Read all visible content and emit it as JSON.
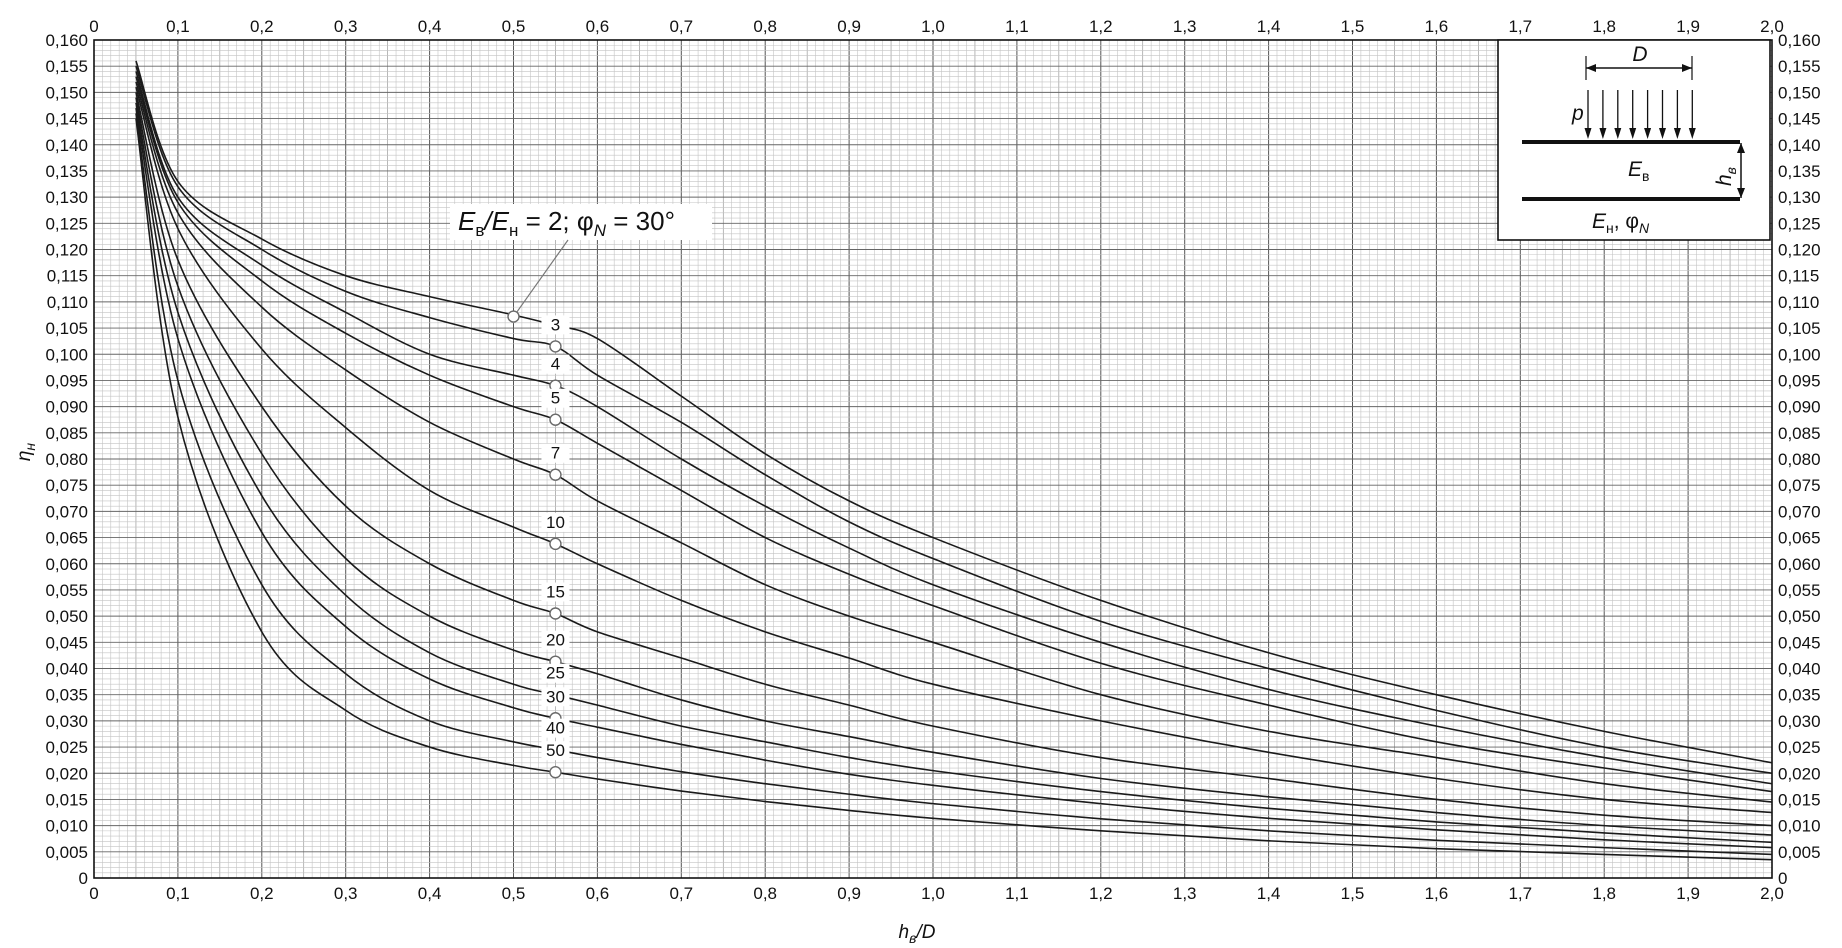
{
  "chart_data": {
    "type": "line",
    "xlabel": {
      "main": "h",
      "sub": "в",
      "rest": "/D"
    },
    "ylabel": {
      "main": "η",
      "sub": "н"
    },
    "xlim": [
      0,
      2.0
    ],
    "ylim": [
      0,
      0.16
    ],
    "x_ticks": [
      "0",
      "0,1",
      "0,2",
      "0,3",
      "0,4",
      "0,5",
      "0,6",
      "0,7",
      "0,8",
      "0,9",
      "1,0",
      "1,1",
      "1,2",
      "1,3",
      "1,4",
      "1,5",
      "1,6",
      "1,7",
      "1,8",
      "1,9",
      "2,0"
    ],
    "y_ticks": [
      "0",
      "0,005",
      "0,010",
      "0,015",
      "0,020",
      "0,025",
      "0,030",
      "0,035",
      "0,040",
      "0,045",
      "0,050",
      "0,055",
      "0,060",
      "0,065",
      "0,070",
      "0,075",
      "0,080",
      "0,085",
      "0,090",
      "0,095",
      "0,100",
      "0,105",
      "0,110",
      "0,115",
      "0,120",
      "0,125",
      "0,130",
      "0,135",
      "0,140",
      "0,145",
      "0,150",
      "0,155",
      "0,160"
    ],
    "grid": true,
    "annotation": {
      "E1": "E",
      "s1": "в",
      "E2": "/E",
      "s2": "н",
      "rest1": " = 2; φ",
      "s3": "N",
      "rest2": " = 30°",
      "x": 0.5,
      "y": 0.1072
    },
    "series": [
      {
        "name": "2",
        "label": "",
        "marker": [
          0.5,
          0.1072
        ],
        "x": [
          0.05,
          0.1,
          0.2,
          0.3,
          0.4,
          0.5,
          0.55,
          0.6,
          0.7,
          0.8,
          0.9,
          1.0,
          1.2,
          1.4,
          1.6,
          1.8,
          2.0
        ],
        "y": [
          0.156,
          0.133,
          0.122,
          0.115,
          0.111,
          0.1075,
          0.1055,
          0.103,
          0.092,
          0.081,
          0.072,
          0.065,
          0.053,
          0.043,
          0.035,
          0.028,
          0.022
        ]
      },
      {
        "name": "3",
        "label": "3",
        "marker": [
          0.55,
          0.1015
        ],
        "x": [
          0.05,
          0.1,
          0.2,
          0.3,
          0.4,
          0.5,
          0.55,
          0.6,
          0.7,
          0.8,
          0.9,
          1.0,
          1.2,
          1.4,
          1.6,
          1.8,
          2.0
        ],
        "y": [
          0.155,
          0.132,
          0.12,
          0.112,
          0.107,
          0.103,
          0.1015,
          0.096,
          0.087,
          0.077,
          0.068,
          0.061,
          0.049,
          0.04,
          0.032,
          0.025,
          0.02
        ]
      },
      {
        "name": "4",
        "label": "4",
        "marker": [
          0.55,
          0.094
        ],
        "x": [
          0.05,
          0.1,
          0.2,
          0.3,
          0.4,
          0.5,
          0.55,
          0.6,
          0.7,
          0.8,
          0.9,
          1.0,
          1.2,
          1.4,
          1.6,
          1.8,
          2.0
        ],
        "y": [
          0.154,
          0.13,
          0.117,
          0.108,
          0.1,
          0.096,
          0.094,
          0.09,
          0.08,
          0.071,
          0.063,
          0.056,
          0.045,
          0.036,
          0.029,
          0.023,
          0.018
        ]
      },
      {
        "name": "5",
        "label": "5",
        "marker": [
          0.55,
          0.0875
        ],
        "x": [
          0.05,
          0.1,
          0.2,
          0.3,
          0.4,
          0.5,
          0.55,
          0.6,
          0.7,
          0.8,
          0.9,
          1.0,
          1.2,
          1.4,
          1.6,
          1.8,
          2.0
        ],
        "y": [
          0.153,
          0.129,
          0.114,
          0.104,
          0.096,
          0.09,
          0.0875,
          0.083,
          0.074,
          0.065,
          0.058,
          0.052,
          0.041,
          0.033,
          0.026,
          0.021,
          0.0165
        ]
      },
      {
        "name": "7",
        "label": "7",
        "marker": [
          0.55,
          0.077
        ],
        "x": [
          0.05,
          0.1,
          0.2,
          0.3,
          0.4,
          0.5,
          0.55,
          0.6,
          0.7,
          0.8,
          0.9,
          1.0,
          1.2,
          1.4,
          1.6,
          1.8,
          2.0
        ],
        "y": [
          0.152,
          0.127,
          0.109,
          0.097,
          0.087,
          0.08,
          0.077,
          0.072,
          0.064,
          0.056,
          0.05,
          0.045,
          0.035,
          0.028,
          0.023,
          0.018,
          0.0145
        ]
      },
      {
        "name": "10",
        "label": "10",
        "marker": [
          0.55,
          0.0638
        ],
        "x": [
          0.05,
          0.1,
          0.2,
          0.3,
          0.4,
          0.5,
          0.55,
          0.6,
          0.7,
          0.8,
          0.9,
          1.0,
          1.2,
          1.4,
          1.6,
          1.8,
          2.0
        ],
        "y": [
          0.151,
          0.124,
          0.101,
          0.086,
          0.074,
          0.067,
          0.0638,
          0.06,
          0.053,
          0.047,
          0.042,
          0.037,
          0.03,
          0.024,
          0.019,
          0.015,
          0.0125
        ]
      },
      {
        "name": "15",
        "label": "15",
        "marker": [
          0.55,
          0.0505
        ],
        "x": [
          0.05,
          0.1,
          0.2,
          0.3,
          0.4,
          0.5,
          0.55,
          0.6,
          0.7,
          0.8,
          0.9,
          1.0,
          1.2,
          1.4,
          1.6,
          1.8,
          2.0
        ],
        "y": [
          0.15,
          0.118,
          0.09,
          0.071,
          0.06,
          0.053,
          0.0505,
          0.047,
          0.042,
          0.037,
          0.033,
          0.029,
          0.023,
          0.019,
          0.015,
          0.012,
          0.01
        ]
      },
      {
        "name": "20",
        "label": "20",
        "marker": [
          0.55,
          0.0413
        ],
        "x": [
          0.05,
          0.1,
          0.2,
          0.3,
          0.4,
          0.5,
          0.55,
          0.6,
          0.7,
          0.8,
          0.9,
          1.0,
          1.2,
          1.4,
          1.6,
          1.8,
          2.0
        ],
        "y": [
          0.149,
          0.113,
          0.081,
          0.061,
          0.05,
          0.0435,
          0.0413,
          0.039,
          0.034,
          0.03,
          0.027,
          0.024,
          0.019,
          0.0155,
          0.0125,
          0.01,
          0.0082
        ]
      },
      {
        "name": "25",
        "label": "25",
        "marker": [
          0.55,
          0.035
        ],
        "x": [
          0.05,
          0.1,
          0.2,
          0.3,
          0.4,
          0.5,
          0.55,
          0.6,
          0.7,
          0.8,
          0.9,
          1.0,
          1.2,
          1.4,
          1.6,
          1.8,
          2.0
        ],
        "y": [
          0.148,
          0.108,
          0.073,
          0.054,
          0.043,
          0.037,
          0.035,
          0.033,
          0.029,
          0.026,
          0.023,
          0.0205,
          0.0165,
          0.0133,
          0.0107,
          0.0086,
          0.0068
        ]
      },
      {
        "name": "30",
        "label": "30",
        "marker": [
          0.55,
          0.0305
        ],
        "x": [
          0.05,
          0.1,
          0.2,
          0.3,
          0.4,
          0.5,
          0.55,
          0.6,
          0.7,
          0.8,
          0.9,
          1.0,
          1.2,
          1.4,
          1.6,
          1.8,
          2.0
        ],
        "y": [
          0.147,
          0.103,
          0.066,
          0.048,
          0.038,
          0.0325,
          0.0305,
          0.0288,
          0.0255,
          0.0225,
          0.0198,
          0.0177,
          0.0142,
          0.0114,
          0.0092,
          0.0073,
          0.0058
        ]
      },
      {
        "name": "40",
        "label": "40",
        "marker": [
          0.55,
          0.0245
        ],
        "x": [
          0.05,
          0.1,
          0.2,
          0.3,
          0.4,
          0.5,
          0.55,
          0.6,
          0.7,
          0.8,
          0.9,
          1.0,
          1.2,
          1.4,
          1.6,
          1.8,
          2.0
        ],
        "y": [
          0.146,
          0.095,
          0.056,
          0.039,
          0.03,
          0.026,
          0.0245,
          0.023,
          0.0203,
          0.018,
          0.016,
          0.0142,
          0.0113,
          0.009,
          0.0072,
          0.0058,
          0.0045
        ]
      },
      {
        "name": "50",
        "label": "50",
        "marker": [
          0.55,
          0.0202
        ],
        "x": [
          0.05,
          0.1,
          0.2,
          0.3,
          0.4,
          0.5,
          0.55,
          0.6,
          0.7,
          0.8,
          0.9,
          1.0,
          1.2,
          1.4,
          1.6,
          1.8,
          2.0
        ],
        "y": [
          0.145,
          0.088,
          0.047,
          0.032,
          0.025,
          0.0215,
          0.0202,
          0.0189,
          0.0166,
          0.0146,
          0.0129,
          0.0114,
          0.009,
          0.0071,
          0.0056,
          0.0045,
          0.0035
        ]
      }
    ]
  },
  "inset": {
    "D": "D",
    "p": "p",
    "Ev_main": "E",
    "Ev_sub": "в",
    "hv_main": "h",
    "hv_sub": "в",
    "En_main": "E",
    "En_sub": "н",
    "phi": ", φ",
    "phi_sub": "N"
  }
}
